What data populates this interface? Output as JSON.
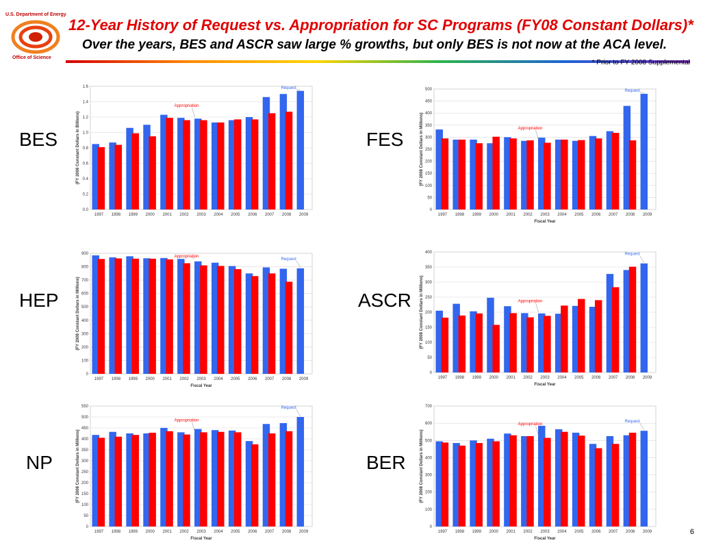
{
  "header": {
    "agency": "U.S. Department of Energy",
    "office": "Office of Science",
    "title": "12-Year History of Request vs. Appropriation for SC Programs (FY08 Constant Dollars)*",
    "subtitle": "Over the years, BES and ASCR saw large % growths, but only BES is not now at the ACA level.",
    "footnote": "* Prior to FY 2008 Supplemental"
  },
  "page_number": "6",
  "colors": {
    "request": "#3366ee",
    "appropriation": "#ff0000",
    "title": "#e00000"
  },
  "chart_data": [
    {
      "type": "bar",
      "program": "BES",
      "categories": [
        "1997",
        "1998",
        "1999",
        "2000",
        "2001",
        "2002",
        "2003",
        "2004",
        "2005",
        "2006",
        "2007",
        "2008",
        "2009"
      ],
      "series": [
        {
          "name": "Request",
          "values": [
            0.85,
            0.87,
            1.06,
            1.1,
            1.23,
            1.19,
            1.18,
            1.13,
            1.16,
            1.2,
            1.46,
            1.5,
            1.54
          ]
        },
        {
          "name": "Appropriation",
          "values": [
            0.81,
            0.84,
            0.99,
            0.95,
            1.19,
            1.16,
            1.16,
            1.13,
            1.17,
            1.17,
            1.25,
            1.27,
            null
          ]
        }
      ],
      "ylabel": "(FY 2008 Constant Dollars in Billions)",
      "xlabel": "",
      "ylim": [
        0,
        1.6
      ],
      "yticks": [
        "0.0",
        "0.2",
        "0.4",
        "0.6",
        "0.8",
        "1.0",
        "1.2",
        "1.4",
        "1.6"
      ],
      "annotations": {
        "request": "Request",
        "appropriation": "Appropriation"
      }
    },
    {
      "type": "bar",
      "program": "FES",
      "categories": [
        "1997",
        "1998",
        "1999",
        "2000",
        "2001",
        "2002",
        "2003",
        "2004",
        "2005",
        "2006",
        "2007",
        "2008",
        "2009"
      ],
      "series": [
        {
          "name": "Request",
          "values": [
            332,
            290,
            290,
            275,
            300,
            285,
            298,
            290,
            285,
            305,
            325,
            430,
            480
          ]
        },
        {
          "name": "Appropriation",
          "values": [
            295,
            290,
            275,
            302,
            295,
            287,
            277,
            290,
            288,
            295,
            318,
            287,
            null
          ]
        }
      ],
      "ylabel": "(FY 2008 Constant Dollars in Millions)",
      "xlabel": "Fiscal Year",
      "ylim": [
        0,
        500
      ],
      "yticks": [
        "0",
        "50",
        "100",
        "150",
        "200",
        "250",
        "300",
        "350",
        "400",
        "450",
        "500"
      ],
      "annotations": {
        "request": "Request",
        "appropriation": "Appropriation"
      }
    },
    {
      "type": "bar",
      "program": "HEP",
      "categories": [
        "1997",
        "1998",
        "1999",
        "2000",
        "2001",
        "2002",
        "2003",
        "2004",
        "2005",
        "2006",
        "2007",
        "2008",
        "2009"
      ],
      "series": [
        {
          "name": "Request",
          "values": [
            885,
            870,
            878,
            863,
            865,
            858,
            840,
            830,
            805,
            750,
            795,
            785,
            788
          ]
        },
        {
          "name": "Appropriation",
          "values": [
            858,
            862,
            860,
            860,
            855,
            826,
            810,
            806,
            782,
            730,
            750,
            688,
            null
          ]
        }
      ],
      "ylabel": "(FY 2008 Constant Dollars in Millions)",
      "xlabel": "Fiscal Year",
      "ylim": [
        0,
        900
      ],
      "yticks": [
        "0",
        "100",
        "200",
        "300",
        "400",
        "500",
        "600",
        "700",
        "800",
        "900"
      ],
      "annotations": {
        "request": "Request",
        "appropriation": "Appropriation"
      }
    },
    {
      "type": "bar",
      "program": "ASCR",
      "categories": [
        "1997",
        "1998",
        "1999",
        "2000",
        "2001",
        "2002",
        "2003",
        "2004",
        "2005",
        "2006",
        "2007",
        "2008",
        "2009"
      ],
      "series": [
        {
          "name": "Request",
          "values": [
            205,
            228,
            203,
            248,
            220,
            197,
            196,
            195,
            221,
            218,
            327,
            340,
            362
          ]
        },
        {
          "name": "Appropriation",
          "values": [
            182,
            189,
            196,
            158,
            197,
            183,
            188,
            222,
            244,
            240,
            283,
            351,
            null
          ]
        }
      ],
      "ylabel": "(FY 2008 Constant Dollars in Millions)",
      "xlabel": "Fiscal Year",
      "ylim": [
        0,
        400
      ],
      "yticks": [
        "0",
        "50",
        "100",
        "150",
        "200",
        "250",
        "300",
        "350",
        "400"
      ],
      "annotations": {
        "request": "Request",
        "appropriation": "Appropriation"
      }
    },
    {
      "type": "bar",
      "program": "NP",
      "categories": [
        "1997",
        "1998",
        "1999",
        "2000",
        "2001",
        "2002",
        "2003",
        "2004",
        "2005",
        "2006",
        "2007",
        "2008",
        "2009"
      ],
      "series": [
        {
          "name": "Request",
          "values": [
            418,
            432,
            425,
            425,
            450,
            430,
            445,
            440,
            438,
            390,
            468,
            472,
            500
          ]
        },
        {
          "name": "Appropriation",
          "values": [
            405,
            410,
            418,
            428,
            435,
            420,
            430,
            432,
            430,
            375,
            425,
            435,
            null
          ]
        }
      ],
      "ylabel": "(FY 2008 Constant Dollars in Millions)",
      "xlabel": "Fiscal Year",
      "ylim": [
        0,
        550
      ],
      "yticks": [
        "0",
        "50",
        "100",
        "150",
        "200",
        "250",
        "300",
        "350",
        "400",
        "450",
        "500",
        "550"
      ],
      "annotations": {
        "request": "Request",
        "appropriation": "Appropriation"
      }
    },
    {
      "type": "bar",
      "program": "BER",
      "categories": [
        "1997",
        "1998",
        "1999",
        "2000",
        "2001",
        "2002",
        "2003",
        "2004",
        "2005",
        "2006",
        "2007",
        "2008",
        "2009"
      ],
      "series": [
        {
          "name": "Request",
          "values": [
            495,
            485,
            500,
            510,
            540,
            525,
            585,
            565,
            545,
            480,
            525,
            530,
            556
          ]
        },
        {
          "name": "Appropriation",
          "values": [
            488,
            470,
            485,
            495,
            530,
            525,
            515,
            550,
            528,
            455,
            480,
            545,
            null
          ]
        }
      ],
      "ylabel": "(FY 2008 Constant Dollars in Millions)",
      "xlabel": "Fiscal Year",
      "ylim": [
        0,
        700
      ],
      "yticks": [
        "0",
        "100",
        "200",
        "300",
        "400",
        "500",
        "600",
        "700"
      ],
      "annotations": {
        "request": "Request",
        "appropriation": "Appropriation"
      }
    }
  ]
}
